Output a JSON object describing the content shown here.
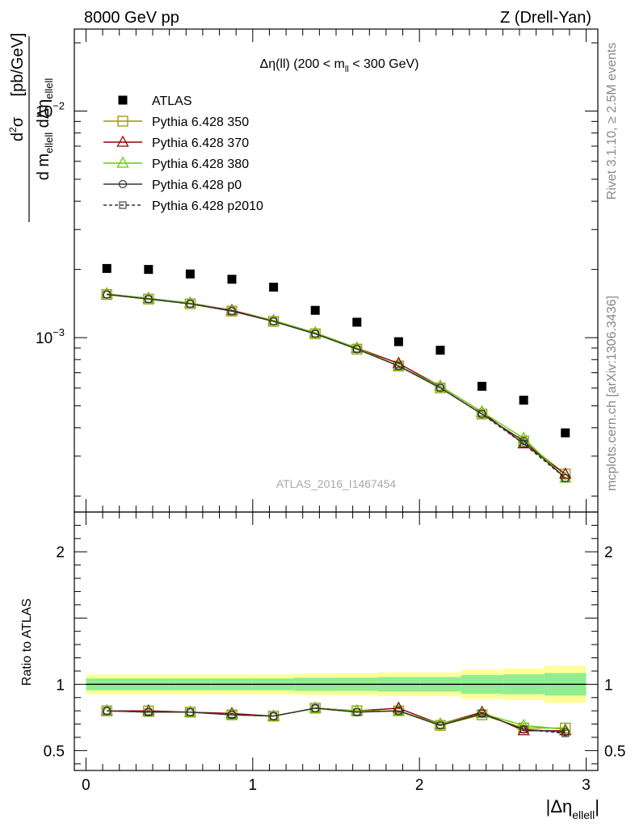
{
  "header": {
    "left": "8000 GeV pp",
    "right": "Z (Drell-Yan)"
  },
  "side_labels": {
    "rivet": "Rivet 3.1.10, ≥ 2.5M events",
    "mcplots": "mcplots.cern.ch [arXiv:1306.3436]"
  },
  "watermark": "ATLAS_2016_I1467454",
  "colors": {
    "data": "#000000",
    "p350": "#999900",
    "p370": "#990000",
    "p380": "#66cc00",
    "p0": "#333333",
    "p2010": "#333333",
    "band_green": "#90ee90",
    "band_yellow": "#ffff99"
  },
  "chart_data": [
    {
      "type": "scatter",
      "panel": "main",
      "title": "Δη(ll) (200 < m_ll < 300 GeV)",
      "ylabel": "d²σ / d m_ellell dΔη_ellell [pb/GeV]",
      "yscale": "log",
      "ylim": [
        0.00017,
        0.023
      ],
      "xlim": [
        -0.07,
        3.07
      ],
      "yticks": [
        {
          "value": 0.001,
          "base": "10",
          "exp": "−3"
        },
        {
          "value": 0.01,
          "base": "10",
          "exp": "−2"
        }
      ],
      "x": [
        0.125,
        0.375,
        0.625,
        0.875,
        1.125,
        1.375,
        1.625,
        1.875,
        2.125,
        2.375,
        2.625,
        2.875
      ],
      "series": [
        {
          "name": "ATLAS",
          "key": "data",
          "marker": "filled-square",
          "line": "none",
          "values": [
            0.00202,
            0.002,
            0.00191,
            0.00181,
            0.00167,
            0.00132,
            0.00117,
            0.00096,
            0.00088,
            0.00061,
            0.00053,
            0.00038
          ]
        },
        {
          "name": "Pythia 6.428 350",
          "key": "p350",
          "marker": "open-square",
          "line": "solid",
          "values": [
            0.00155,
            0.00148,
            0.00141,
            0.00131,
            0.00118,
            0.00104,
            0.00089,
            0.00075,
            0.0006,
            0.00046,
            0.00035,
            0.00025
          ]
        },
        {
          "name": "Pythia 6.428 370",
          "key": "p370",
          "marker": "open-triangle",
          "line": "solid",
          "values": [
            0.00156,
            0.00149,
            0.00142,
            0.00132,
            0.00119,
            0.00105,
            0.0009,
            0.00077,
            0.00061,
            0.00047,
            0.00034,
            0.00025
          ]
        },
        {
          "name": "Pythia 6.428 380",
          "key": "p380",
          "marker": "open-triangle",
          "line": "solid",
          "values": [
            0.00156,
            0.00149,
            0.00142,
            0.00131,
            0.00119,
            0.00105,
            0.0009,
            0.00075,
            0.00061,
            0.00047,
            0.00036,
            0.00024
          ]
        },
        {
          "name": "Pythia 6.428 p0",
          "key": "p0",
          "marker": "open-circle",
          "line": "solid",
          "values": [
            0.00155,
            0.00148,
            0.00141,
            0.00131,
            0.00118,
            0.00104,
            0.00089,
            0.00075,
            0.0006,
            0.00046,
            0.00035,
            0.00024
          ]
        },
        {
          "name": "Pythia 6.428 p2010",
          "key": "p2010",
          "marker": "open-square-small",
          "line": "dashed",
          "values": [
            0.00155,
            0.00148,
            0.00141,
            0.00131,
            0.00118,
            0.00104,
            0.00089,
            0.00075,
            0.0006,
            0.00046,
            0.00034,
            0.00024
          ]
        }
      ],
      "legend": "top-left"
    },
    {
      "type": "line",
      "panel": "ratio",
      "ylabel": "Ratio to ATLAS",
      "ylim": [
        0.35,
        2.3
      ],
      "xlim": [
        -0.07,
        3.07
      ],
      "xlabel": "|Δη_ellell|",
      "xticks": [
        0,
        1,
        2,
        3
      ],
      "yticks": [
        0.5,
        1,
        2
      ],
      "bins": [
        0,
        0.25,
        0.5,
        0.75,
        1.0,
        1.25,
        1.5,
        1.75,
        2.0,
        2.25,
        2.5,
        2.75,
        3.0
      ],
      "band_green": [
        0.045,
        0.045,
        0.045,
        0.045,
        0.045,
        0.05,
        0.05,
        0.055,
        0.055,
        0.07,
        0.075,
        0.085
      ],
      "band_yellow": [
        0.075,
        0.075,
        0.075,
        0.075,
        0.075,
        0.08,
        0.085,
        0.09,
        0.09,
        0.11,
        0.12,
        0.14
      ],
      "x": [
        0.125,
        0.375,
        0.625,
        0.875,
        1.125,
        1.375,
        1.625,
        1.875,
        2.125,
        2.375,
        2.625,
        2.875
      ],
      "series": [
        {
          "name": "Pythia 6.428 350",
          "key": "p350",
          "values": [
            0.8,
            0.8,
            0.79,
            0.77,
            0.76,
            0.82,
            0.8,
            0.8,
            0.69,
            0.77,
            0.67,
            0.67
          ]
        },
        {
          "name": "Pythia 6.428 370",
          "key": "p370",
          "values": [
            0.8,
            0.8,
            0.79,
            0.78,
            0.76,
            0.82,
            0.8,
            0.82,
            0.7,
            0.79,
            0.65,
            0.65
          ]
        },
        {
          "name": "Pythia 6.428 380",
          "key": "p380",
          "values": [
            0.8,
            0.79,
            0.79,
            0.77,
            0.76,
            0.82,
            0.8,
            0.8,
            0.7,
            0.78,
            0.69,
            0.66
          ]
        },
        {
          "name": "Pythia 6.428 p0",
          "key": "p0",
          "values": [
            0.8,
            0.79,
            0.79,
            0.77,
            0.76,
            0.82,
            0.79,
            0.8,
            0.69,
            0.78,
            0.66,
            0.64
          ]
        },
        {
          "name": "Pythia 6.428 p2010",
          "key": "p2010",
          "values": [
            0.8,
            0.79,
            0.79,
            0.77,
            0.76,
            0.82,
            0.79,
            0.8,
            0.69,
            0.78,
            0.66,
            0.63
          ]
        }
      ]
    }
  ]
}
